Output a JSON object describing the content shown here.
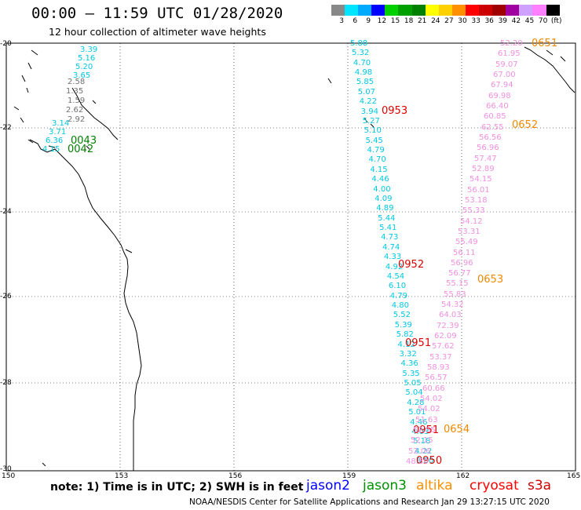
{
  "header": {
    "title": "00:00 – 11:59 UTC 01/28/2020",
    "subtitle": "12 hour collection of altimeter wave heights"
  },
  "colorbar": {
    "labels": [
      "3",
      "6",
      "9",
      "12",
      "15",
      "18",
      "21",
      "24",
      "27",
      "30",
      "33",
      "36",
      "39",
      "42",
      "45",
      "70",
      "(ft)"
    ],
    "colors": [
      "#888888",
      "#00e5ff",
      "#00aaff",
      "#0000ff",
      "#00d000",
      "#00a000",
      "#008000",
      "#ffff00",
      "#ffd000",
      "#ff9000",
      "#ff0000",
      "#cc0000",
      "#a00000",
      "#a000a0",
      "#d0a0ff",
      "#ff80ff",
      "#000000"
    ]
  },
  "axes": {
    "lon_labels": [
      "150",
      "153",
      "156",
      "159",
      "162",
      "165"
    ],
    "lat_labels": [
      "-20",
      "-22",
      "-24",
      "-26",
      "-28",
      "-30"
    ]
  },
  "colors": {
    "jason2": "#0000ff",
    "jason3": "#009000",
    "altika": "#ff9000",
    "cryosat": "#ff0000",
    "s3a": "#cc0000",
    "swh_cyan": "#00c8e0",
    "swh_pink": "#f090e0",
    "swh_gray": "#707070",
    "time_green": "#008000",
    "time_red": "#dd0000",
    "time_orange": "#ee8800"
  },
  "tracks": {
    "west_cyan": [
      "3.39",
      "5.16",
      "5.20",
      "3.65"
    ],
    "west_gray": [
      "2.58",
      "1.35",
      "1.59",
      "2.62",
      "2.92"
    ],
    "west_cyan2": [
      "3.14",
      "3.71",
      "6.36",
      "4.15"
    ],
    "west_times": [
      "0043",
      "0042"
    ],
    "mid": [
      "5.88",
      "5.32",
      "4.70",
      "4.98",
      "5.85",
      "5.07",
      "4.22",
      "3.94",
      "5.27",
      "5.10",
      "5.45",
      "4.79",
      "4.70",
      "4.15",
      "4.46",
      "4.00",
      "4.09",
      "4.89",
      "5.44",
      "5.41",
      "4.73",
      "4.74",
      "4.33",
      "4.92",
      "4.54",
      "6.10",
      "4.79",
      "4.80",
      "5.52",
      "5.39",
      "5.82",
      "4.12",
      "3.32",
      "4.36",
      "5.35",
      "5.05",
      "5.04",
      "4.28",
      "5.01",
      "4.46",
      "4.03",
      "5.18",
      "4.22",
      "3.80"
    ],
    "mid_times": [
      "0953",
      "0952",
      "0951",
      "0951",
      "0950"
    ],
    "east": [
      "52.20",
      "61.95",
      "59.07",
      "67.00",
      "67.94",
      "69.98",
      "66.40",
      "60.85",
      "62.55",
      "56.56",
      "56.96",
      "57.47",
      "52.89",
      "54.15",
      "56.01",
      "53.18",
      "55.33",
      "54.12",
      "53.31",
      "55.49",
      "56.11",
      "56.96",
      "56.77",
      "55.15",
      "55.83",
      "54.32",
      "64.03",
      "72.39",
      "62.09",
      "57.62",
      "53.37",
      "58.93",
      "56.57",
      "60.66",
      "54.02",
      "54.02",
      "51.63",
      "52.55",
      "52.15",
      "52.06",
      "48.50"
    ],
    "east_times": [
      "0651",
      "0652",
      "0653",
      "0654"
    ]
  },
  "note": "note: 1) Time is in UTC; 2) SWH is in feet",
  "satellites": [
    "jason2",
    "jason3",
    "altika",
    "cryosat",
    "s3a"
  ],
  "footer": "NOAA/NESDIS Center for Satellite Applications and Research   Jan 29 13:27:15 UTC 2020"
}
